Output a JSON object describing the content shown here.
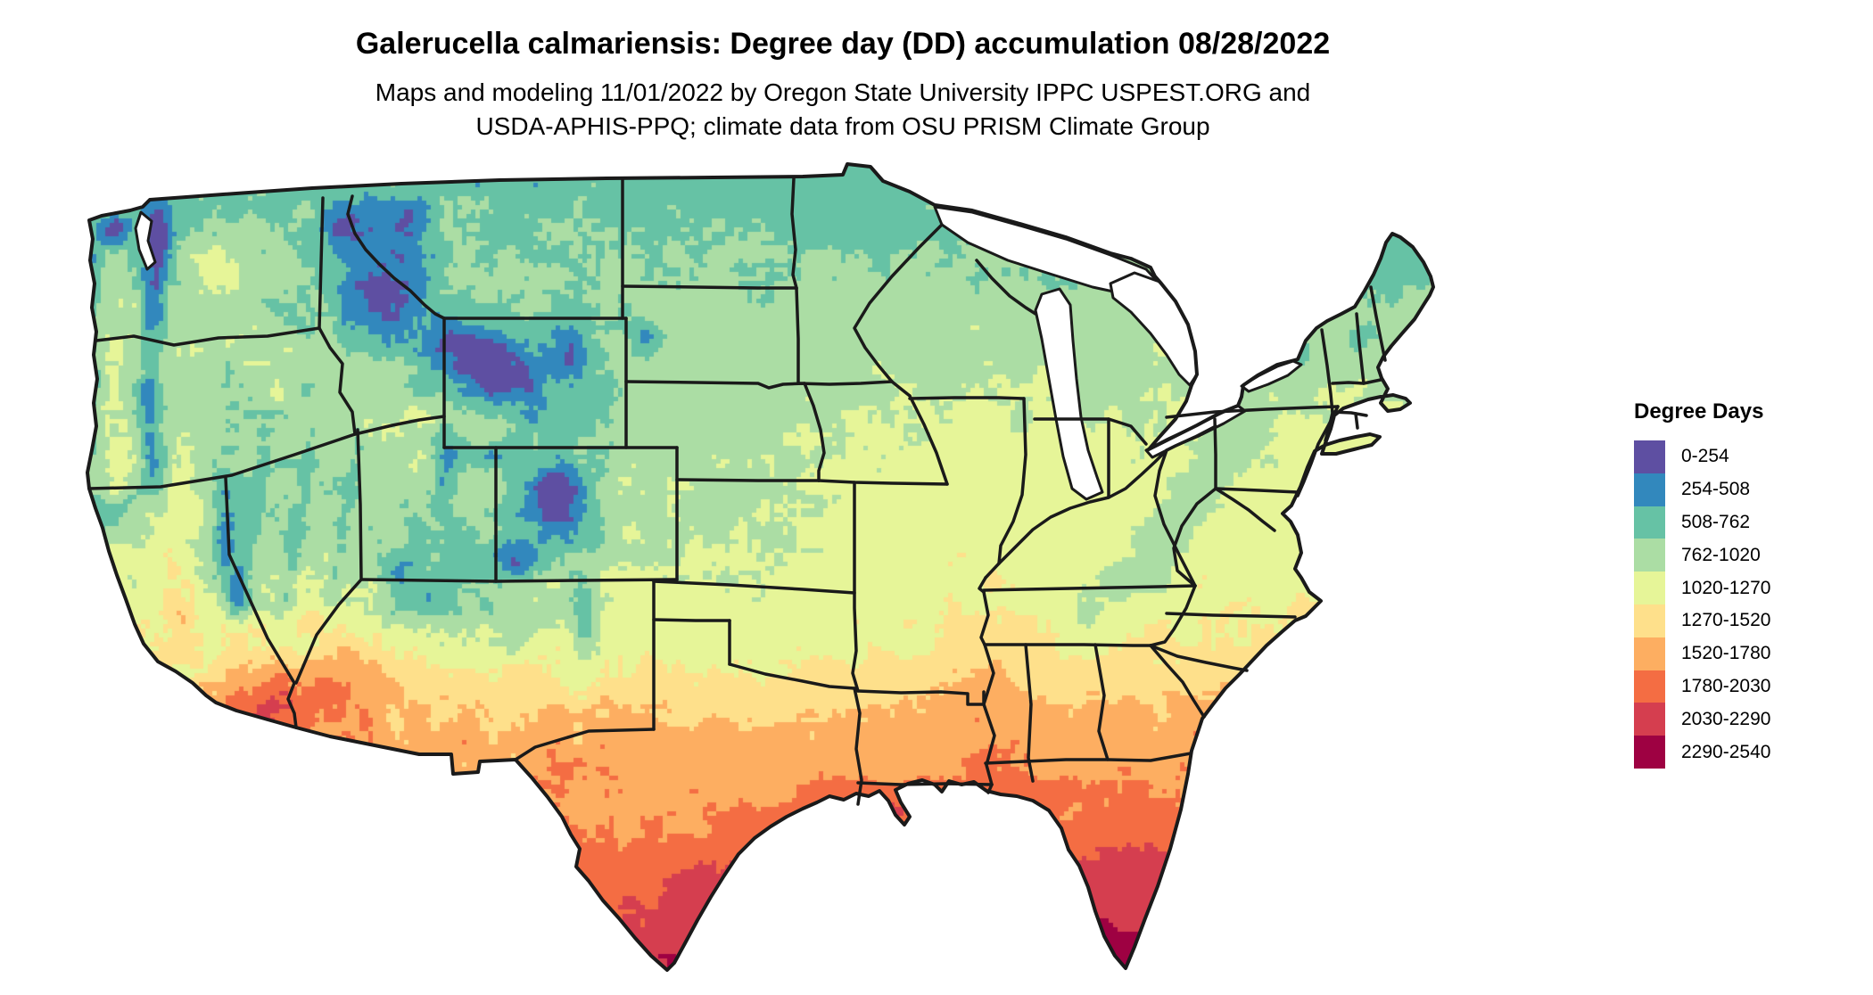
{
  "header": {
    "title": "Galerucella calmariensis: Degree day (DD) accumulation 08/28/2022",
    "subtitle_line1": "Maps and modeling 11/01/2022 by Oregon State University IPPC USPEST.ORG and",
    "subtitle_line2": "USDA-APHIS-PPQ; climate data from OSU PRISM Climate Group"
  },
  "legend": {
    "title": "Degree Days",
    "entries": [
      {
        "label": "0-254",
        "color": "#5e4fa2"
      },
      {
        "label": "254-508",
        "color": "#3288bd"
      },
      {
        "label": "508-762",
        "color": "#66c2a5"
      },
      {
        "label": "762-1020",
        "color": "#abdda4"
      },
      {
        "label": "1020-1270",
        "color": "#e6f598"
      },
      {
        "label": "1270-1520",
        "color": "#fee08b"
      },
      {
        "label": "1520-1780",
        "color": "#fdae61"
      },
      {
        "label": "1780-2030",
        "color": "#f46d43"
      },
      {
        "label": "2030-2290",
        "color": "#d53e4f"
      },
      {
        "label": "2290-2540",
        "color": "#9e0142"
      }
    ],
    "breaks": [
      0,
      254,
      508,
      762,
      1020,
      1270,
      1520,
      1780,
      2030,
      2290,
      2540
    ]
  },
  "map": {
    "colors": {
      "background": "#ffffff",
      "water": "#ffffff",
      "state_border": "#1a1a1a"
    }
  }
}
